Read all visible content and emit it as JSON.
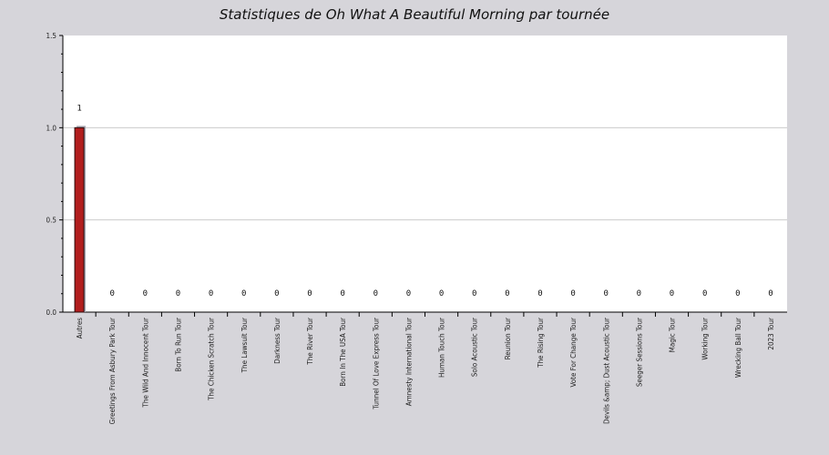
{
  "chart_data": {
    "type": "bar",
    "title": "Statistiques de Oh What A Beautiful Morning par tournée",
    "xlabel": "",
    "ylabel": "",
    "ylim": [
      0,
      1.5
    ],
    "yticks": [
      "0.0",
      "0.5",
      "1.0",
      "1.5"
    ],
    "grid": true,
    "categories": [
      "Autres",
      "Greetings From Asbury Park Tour",
      "The Wild And Innocent Tour",
      "Born To Run Tour",
      "The Chicken Scratch Tour",
      "The Lawsuit Tour",
      "Darkness Tour",
      "The River Tour",
      "Born In The USA Tour",
      "Tunnel Of Love Express Tour",
      "Amnesty International Tour",
      "Human Touch Tour",
      "Solo Acoustic Tour",
      "Reunion Tour",
      "The Rising Tour",
      "Vote For Change Tour",
      "Devils &amp; Dust Acoustic Tour",
      "Seeger Sessions Tour",
      "Magic Tour",
      "Working Tour",
      "Wrecking Ball Tour",
      "2023 Tour"
    ],
    "values": [
      1,
      0,
      0,
      0,
      0,
      0,
      0,
      0,
      0,
      0,
      0,
      0,
      0,
      0,
      0,
      0,
      0,
      0,
      0,
      0,
      0,
      0
    ],
    "data_labels": [
      "1",
      "0",
      "0",
      "0",
      "0",
      "0",
      "0",
      "0",
      "0",
      "0",
      "0",
      "0",
      "0",
      "0",
      "0",
      "0",
      "0",
      "0",
      "0",
      "0",
      "0",
      "0"
    ],
    "colors": {
      "bar_fill": "#b21e1e",
      "bar_stroke": "#2a0a0a",
      "bar_shadow": "#a9a9b4",
      "plot_background": "#ffffff",
      "page_background": "#d6d5da",
      "grid": "#cccccc"
    }
  }
}
